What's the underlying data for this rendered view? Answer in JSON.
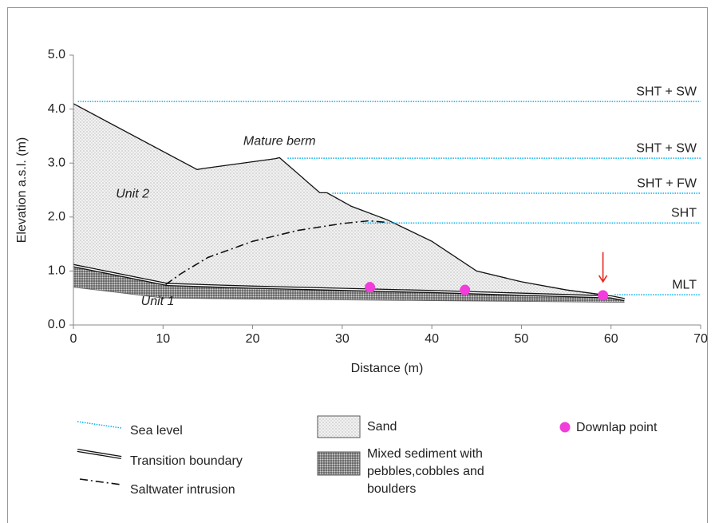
{
  "chart_data": {
    "type": "line",
    "xlabel": "Distance (m)",
    "ylabel": "Elevation a.s.l. (m)",
    "xlim": [
      0,
      70
    ],
    "ylim": [
      0,
      5
    ],
    "xticks": [
      0,
      10,
      20,
      30,
      40,
      50,
      60,
      70
    ],
    "yticks": [
      {
        "value": 0,
        "label": "0.0"
      },
      {
        "value": 1,
        "label": "1.0"
      },
      {
        "value": 2,
        "label": "2.0"
      },
      {
        "value": 3,
        "label": "3.0"
      },
      {
        "value": 4,
        "label": "4.0"
      },
      {
        "value": 5,
        "label": "5.0"
      }
    ],
    "sea_level": {
      "name": "Sea level",
      "color": "#00b0f0",
      "levels": [
        {
          "label": "SHT + SW",
          "y": 4.14,
          "x": [
            0.5,
            70
          ]
        },
        {
          "label": "SHT + SW",
          "y": 3.09,
          "x": [
            23.9,
            70
          ]
        },
        {
          "label": "SHT + FW",
          "y": 2.44,
          "x": [
            28.9,
            70
          ]
        },
        {
          "label": "SHT",
          "y": 1.89,
          "x": [
            32.3,
            70
          ]
        },
        {
          "label": "MLT",
          "y": 0.56,
          "x": [
            60.4,
            70
          ]
        }
      ]
    },
    "surface": {
      "x": [
        0,
        13.8,
        14.5,
        22.5,
        23,
        27.5,
        28.3,
        31,
        35,
        40,
        45,
        50,
        55,
        59.5,
        61.5
      ],
      "values": [
        4.1,
        2.88,
        2.9,
        3.08,
        3.1,
        2.45,
        2.45,
        2.2,
        1.95,
        1.55,
        1.0,
        0.8,
        0.65,
        0.55,
        0.47
      ]
    },
    "transition": {
      "name": "Transition boundary",
      "x": [
        0,
        10.5,
        20,
        40,
        60,
        61.5
      ],
      "values": [
        1.1,
        0.75,
        0.7,
        0.62,
        0.52,
        0.47
      ]
    },
    "base": {
      "x": [
        0,
        10,
        20,
        40,
        61.5
      ],
      "values": [
        0.7,
        0.5,
        0.48,
        0.45,
        0.42
      ]
    },
    "saltwater": {
      "name": "Saltwater intrusion",
      "x": [
        10.3,
        12,
        15,
        20,
        25,
        30,
        33,
        35
      ],
      "values": [
        0.75,
        0.95,
        1.25,
        1.55,
        1.75,
        1.88,
        1.93,
        1.9
      ]
    },
    "sand": {
      "name": "Sand"
    },
    "mixed": {
      "name": [
        "Mixed sediment with",
        "pebbles,cobbles and",
        "boulders"
      ]
    },
    "downlap": {
      "name": "Downlap point",
      "color": "#f23cdc",
      "x": [
        33.1,
        43.7,
        59.1
      ],
      "values": [
        0.7,
        0.65,
        0.55
      ]
    },
    "arrow": {
      "color": "#e8281e",
      "x": 59.1,
      "y": [
        1.35,
        0.8
      ]
    },
    "annotations": [
      {
        "text": "Mature berm",
        "x": 23,
        "y": 3.4,
        "italic": true
      },
      {
        "text": "Unit 2",
        "x": 6.6,
        "y": 2.42,
        "italic": true
      },
      {
        "text": "Unit 1",
        "x": 9.4,
        "y": 0.43,
        "italic": true
      }
    ]
  }
}
